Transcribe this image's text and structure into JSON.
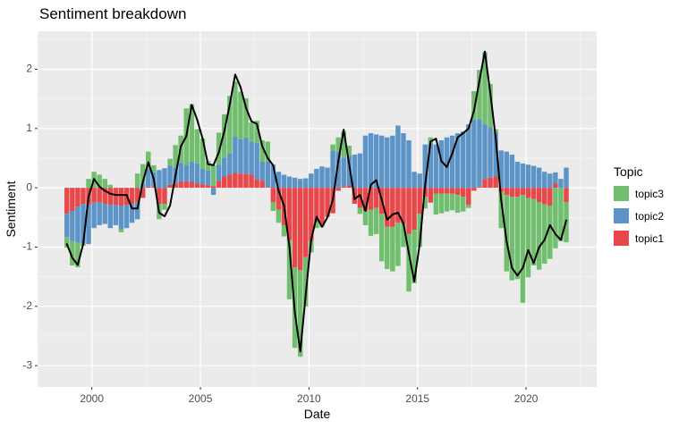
{
  "title": "Sentiment breakdown",
  "legend": {
    "title": "Topic",
    "items": [
      {
        "label": "topic3",
        "color": "#70BE6E"
      },
      {
        "label": "topic2",
        "color": "#5D94C7"
      },
      {
        "label": "topic1",
        "color": "#E8484A"
      }
    ]
  },
  "chart_data": {
    "type": "stacked_bar_with_line",
    "title": "Sentiment breakdown",
    "xlabel": "Date",
    "ylabel": "Sentiment",
    "legend_position": "right",
    "panel_bg": "#EBEBEB",
    "grid_color": "#FFFFFF",
    "tick_color": "#333333",
    "tick_label_color": "#4D4D4D",
    "line_color": "#000000",
    "colors": {
      "topic1": "#E8484A",
      "topic2": "#5D94C7",
      "topic3": "#70BE6E"
    },
    "xlim": [
      1997.5,
      2023.25
    ],
    "ylim": [
      -3.36,
      2.64
    ],
    "x_ticks": [
      2000,
      2005,
      2010,
      2015,
      2020
    ],
    "x_tick_labels": [
      "2000",
      "2005",
      "2010",
      "2015",
      "2020"
    ],
    "x_minor_ticks": [
      1997.5,
      2002.5,
      2007.5,
      2012.5,
      2017.5,
      2022.5
    ],
    "y_ticks": [
      2,
      1,
      0,
      -1,
      -2,
      -3
    ],
    "y_tick_labels": [
      "2",
      "1",
      "0",
      "-1",
      "-2",
      "-3"
    ],
    "y_minor_ticks": [
      2.5,
      1.5,
      0.5,
      -0.5,
      -1.5,
      -2.5
    ],
    "x_start": 1998.85,
    "x_step": 0.25,
    "bar_width_years": 0.225,
    "series_order": [
      "topic1",
      "topic2",
      "topic3"
    ],
    "series": {
      "topic1": [
        -0.44,
        -0.39,
        -0.32,
        -0.27,
        -0.29,
        -0.25,
        -0.24,
        -0.27,
        -0.29,
        -0.29,
        -0.31,
        -0.29,
        -0.27,
        -0.24,
        -0.17,
        0.02,
        0.02,
        -0.27,
        -0.27,
        0.05,
        0.07,
        0.1,
        0.11,
        0.1,
        0.07,
        0.06,
        0.04,
        0.03,
        0.12,
        0.19,
        0.22,
        0.25,
        0.24,
        0.24,
        0.22,
        0.15,
        0.12,
        0.01,
        -0.24,
        -0.37,
        -0.63,
        -0.88,
        -1.34,
        -1.39,
        -1.17,
        -0.9,
        -0.58,
        -0.61,
        -0.49,
        -0.43,
        -0.05,
        0.02,
        0.04,
        -0.27,
        -0.34,
        -0.39,
        -0.37,
        -0.34,
        -0.44,
        -0.66,
        -0.66,
        -0.59,
        -0.61,
        -0.78,
        -0.71,
        -0.44,
        -0.15,
        -0.25,
        -0.1,
        -0.1,
        -0.1,
        -0.1,
        -0.12,
        -0.15,
        -0.29,
        -0.05,
        0.02,
        0.15,
        0.17,
        0.19,
        -0.07,
        -0.12,
        -0.15,
        -0.15,
        -0.12,
        -0.17,
        -0.19,
        -0.24,
        -0.28,
        -0.3,
        0.07,
        0.0,
        -0.24
      ],
      "topic2": [
        -0.39,
        -0.51,
        -0.61,
        -0.67,
        -0.66,
        -0.43,
        -0.39,
        -0.34,
        -0.39,
        -0.34,
        -0.39,
        -0.39,
        -0.32,
        -0.29,
        0.07,
        0.29,
        0.24,
        0.3,
        0.33,
        0.32,
        0.27,
        0.32,
        0.28,
        0.34,
        0.34,
        0.26,
        0.25,
        -0.12,
        0.27,
        0.32,
        0.36,
        0.62,
        0.58,
        0.61,
        0.56,
        0.61,
        0.32,
        0.43,
        0.39,
        0.27,
        0.22,
        0.19,
        0.17,
        0.15,
        0.16,
        0.24,
        0.32,
        0.36,
        0.34,
        0.63,
        0.61,
        0.49,
        0.5,
        0.56,
        0.58,
        0.88,
        0.92,
        0.9,
        0.88,
        0.85,
        0.88,
        1.05,
        0.92,
        0.8,
        0.27,
        0.24,
        0.73,
        0.75,
        0.73,
        0.8,
        0.85,
        0.88,
        0.92,
        0.95,
        1.07,
        1.14,
        1.14,
        0.92,
        0.85,
        0.75,
        0.63,
        0.61,
        0.56,
        0.44,
        0.41,
        0.39,
        0.37,
        0.34,
        0.27,
        0.24,
        0.19,
        0.15,
        0.34
      ],
      "topic3": [
        -0.18,
        -0.41,
        -0.41,
        -0.04,
        0.15,
        0.27,
        0.22,
        0.15,
        0.05,
        0.0,
        -0.05,
        0.0,
        0.0,
        0.24,
        0.33,
        0.3,
        0.12,
        -0.26,
        -0.1,
        0.12,
        0.38,
        0.46,
        0.95,
        0.97,
        0.58,
        0.51,
        0.16,
        0.35,
        0.54,
        0.73,
        0.97,
        0.92,
        0.8,
        0.66,
        0.32,
        0.37,
        0.36,
        0.34,
        -0.15,
        -0.22,
        -0.19,
        -1.0,
        -1.36,
        -1.46,
        -0.83,
        -0.19,
        -0.1,
        -0.05,
        0.0,
        0.1,
        0.24,
        0.44,
        0.17,
        0.0,
        -0.1,
        -0.24,
        -0.44,
        -0.44,
        -0.8,
        -0.71,
        -0.75,
        -0.73,
        -0.39,
        -0.97,
        -0.9,
        -0.56,
        -0.2,
        0.1,
        -0.35,
        -0.33,
        -0.3,
        -0.28,
        -0.3,
        -0.25,
        -0.05,
        0.49,
        0.83,
        1.22,
        0.73,
        0.05,
        -0.61,
        -1.29,
        -1.41,
        -1.39,
        -1.82,
        -1.34,
        -1.12,
        -1.14,
        -1.0,
        -0.9,
        -1.02,
        -0.9,
        -0.68
      ]
    },
    "line": [
      -0.95,
      -1.18,
      -1.3,
      -0.95,
      -0.15,
      0.15,
      0.02,
      -0.05,
      -0.1,
      -0.12,
      -0.12,
      -0.12,
      -0.35,
      -0.35,
      0.1,
      0.43,
      0.15,
      -0.42,
      -0.48,
      -0.3,
      0.2,
      0.7,
      0.87,
      1.4,
      1.15,
      0.83,
      0.4,
      0.38,
      0.6,
      0.95,
      1.4,
      1.91,
      1.7,
      1.35,
      1.12,
      1.08,
      0.7,
      0.5,
      0.38,
      -0.05,
      -0.3,
      -1.0,
      -2.1,
      -2.76,
      -1.8,
      -0.88,
      -0.49,
      -0.66,
      -0.5,
      -0.2,
      0.45,
      0.98,
      0.4,
      -0.19,
      -0.12,
      -0.39,
      0.05,
      0.13,
      -0.2,
      -0.54,
      -0.45,
      -0.42,
      -0.6,
      -1.1,
      -1.58,
      -0.95,
      0.05,
      0.78,
      0.83,
      0.45,
      0.35,
      0.58,
      0.85,
      0.92,
      1.0,
      1.3,
      1.8,
      2.3,
      1.6,
      0.85,
      -0.2,
      -0.9,
      -1.35,
      -1.48,
      -1.35,
      -1.05,
      -1.27,
      -1.0,
      -0.88,
      -0.63,
      -0.78,
      -0.88,
      -0.55
    ]
  }
}
